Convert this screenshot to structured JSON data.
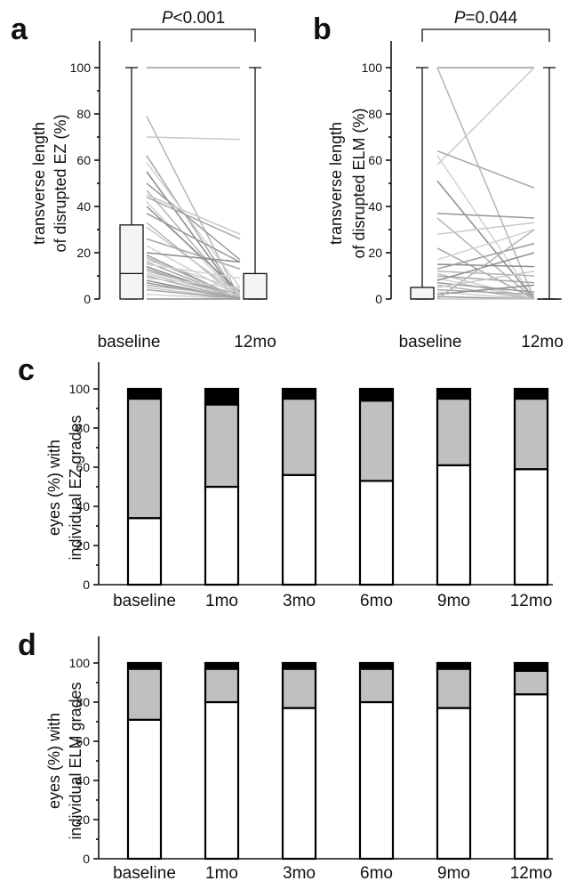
{
  "chart_data": [
    {
      "panel": "a",
      "type": "box-paired",
      "categories": [
        "baseline",
        "12mo"
      ],
      "ylabel_line1": "transverse length",
      "ylabel_line2": "of disrupted EZ (%)",
      "ylim": [
        0,
        100
      ],
      "yticks": [
        0,
        20,
        40,
        60,
        80,
        100
      ],
      "p_prefix": "P",
      "p_value": "<0.001",
      "boxes": [
        {
          "min": 0,
          "q1": 0,
          "median": 11,
          "q3": 32,
          "max": 100
        },
        {
          "min": 0,
          "q1": 0,
          "median": 0,
          "q3": 11,
          "max": 100
        }
      ],
      "pairs": [
        [
          100,
          100
        ],
        [
          79,
          0
        ],
        [
          70,
          69
        ],
        [
          62,
          0
        ],
        [
          59,
          5
        ],
        [
          55,
          0
        ],
        [
          50,
          17
        ],
        [
          47,
          0
        ],
        [
          45,
          28
        ],
        [
          44,
          26
        ],
        [
          42,
          0
        ],
        [
          40,
          3
        ],
        [
          37,
          16
        ],
        [
          33,
          0
        ],
        [
          31,
          2
        ],
        [
          26,
          13
        ],
        [
          23,
          1
        ],
        [
          20,
          16
        ],
        [
          19,
          0
        ],
        [
          18,
          0
        ],
        [
          17,
          4
        ],
        [
          16,
          0
        ],
        [
          15,
          9
        ],
        [
          14,
          0
        ],
        [
          13,
          0
        ],
        [
          12,
          2
        ],
        [
          11,
          1
        ],
        [
          10,
          0
        ],
        [
          9,
          5
        ],
        [
          8,
          0
        ],
        [
          7,
          0
        ],
        [
          6,
          1
        ],
        [
          5,
          0
        ],
        [
          4,
          0
        ],
        [
          2,
          0
        ],
        [
          0,
          0
        ]
      ]
    },
    {
      "panel": "b",
      "type": "box-paired",
      "categories": [
        "baseline",
        "12mo"
      ],
      "ylabel_line1": "transverse length",
      "ylabel_line2": "of  disrupted ELM (%)",
      "ylim": [
        0,
        100
      ],
      "yticks": [
        0,
        20,
        40,
        60,
        80,
        100
      ],
      "p_prefix": "P",
      "p_value": "=0.044",
      "boxes": [
        {
          "min": 0,
          "q1": 0,
          "median": 0,
          "q3": 5,
          "max": 100
        },
        {
          "min": 0,
          "q1": 0,
          "median": 0,
          "q3": 0,
          "max": 100
        }
      ],
      "pairs": [
        [
          100,
          100
        ],
        [
          100,
          0
        ],
        [
          58,
          100
        ],
        [
          64,
          48
        ],
        [
          62,
          0
        ],
        [
          51,
          0
        ],
        [
          37,
          35
        ],
        [
          35,
          0
        ],
        [
          28,
          33
        ],
        [
          22,
          0
        ],
        [
          17,
          30
        ],
        [
          15,
          14
        ],
        [
          13,
          24
        ],
        [
          12,
          10
        ],
        [
          11,
          0
        ],
        [
          10,
          7
        ],
        [
          9,
          0
        ],
        [
          8,
          20
        ],
        [
          7,
          3
        ],
        [
          6,
          0
        ],
        [
          5,
          12
        ],
        [
          4,
          2
        ],
        [
          3,
          0
        ],
        [
          2,
          6
        ],
        [
          1,
          0
        ],
        [
          0,
          30
        ],
        [
          0,
          0
        ]
      ]
    },
    {
      "panel": "c",
      "type": "stacked-bar",
      "categories": [
        "baseline",
        "1mo",
        "3mo",
        "6mo",
        "9mo",
        "12mo"
      ],
      "ylabel_line1": "eyes (%) with",
      "ylabel_line2": "individual EZ grades",
      "ylim": [
        0,
        100
      ],
      "yticks": [
        0,
        20,
        40,
        60,
        80,
        100
      ],
      "series": [
        {
          "color": "#ffffff",
          "values": [
            34,
            50,
            56,
            53,
            61,
            59
          ]
        },
        {
          "color": "#c0c0c0",
          "values": [
            61,
            42,
            39,
            41,
            34,
            36
          ]
        },
        {
          "color": "#000000",
          "values": [
            5,
            8,
            5,
            6,
            5,
            5
          ]
        }
      ]
    },
    {
      "panel": "d",
      "type": "stacked-bar",
      "categories": [
        "baseline",
        "1mo",
        "3mo",
        "6mo",
        "9mo",
        "12mo"
      ],
      "ylabel_line1": "eyes (%) with",
      "ylabel_line2": "individual ELM grades",
      "ylim": [
        0,
        100
      ],
      "yticks": [
        0,
        20,
        40,
        60,
        80,
        100
      ],
      "series": [
        {
          "color": "#ffffff",
          "values": [
            71,
            80,
            77,
            80,
            77,
            84
          ]
        },
        {
          "color": "#c0c0c0",
          "values": [
            26,
            17,
            20,
            17,
            20,
            12
          ]
        },
        {
          "color": "#000000",
          "values": [
            3,
            3,
            3,
            3,
            3,
            4
          ]
        }
      ]
    }
  ]
}
